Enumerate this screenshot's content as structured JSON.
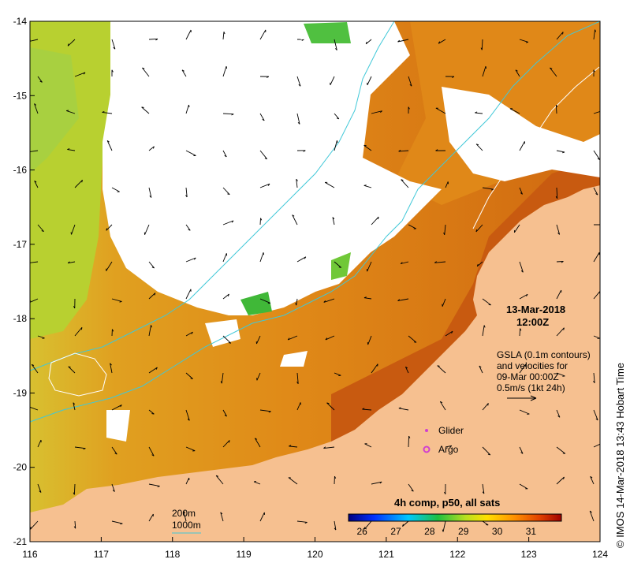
{
  "map": {
    "lon_ticks": [
      "116",
      "117",
      "118",
      "119",
      "120",
      "121",
      "122",
      "123",
      "124"
    ],
    "lat_ticks": [
      "-14",
      "-15",
      "-16",
      "-17",
      "-18",
      "-19",
      "-20",
      "-21"
    ],
    "lon_range": [
      116,
      124
    ],
    "lat_range": [
      -21,
      -14
    ]
  },
  "annotation": {
    "date": "13-Mar-2018",
    "time": "12:00Z",
    "gsla_line1": "GSLA (0.1m contours)",
    "gsla_line2": "and velocities for",
    "gsla_line3": "09-Mar 00:00Z",
    "scale_text": "0.5m/s (1kt 24h)"
  },
  "legend": {
    "glider_label": "Glider",
    "argo_label": "Argo",
    "isobath_200": "200m",
    "isobath_1000": "1000m",
    "colorbar_title": "4h comp, p50, all sats",
    "colorbar_ticks": [
      "26",
      "27",
      "28",
      "29",
      "30",
      "31"
    ],
    "colorbar_range": [
      25.6,
      31.9
    ]
  },
  "credit": "©  IMOS 14-Mar-2018 13:43 Hobart Time",
  "colors": {
    "land": "#f6c090",
    "sst_warm": "#d86a10",
    "sst_mid": "#e8901c",
    "sst_cool": "#b8d838",
    "cloud": "#ffffff",
    "isobath": "#40c8d8",
    "glider": "#d040d0"
  }
}
